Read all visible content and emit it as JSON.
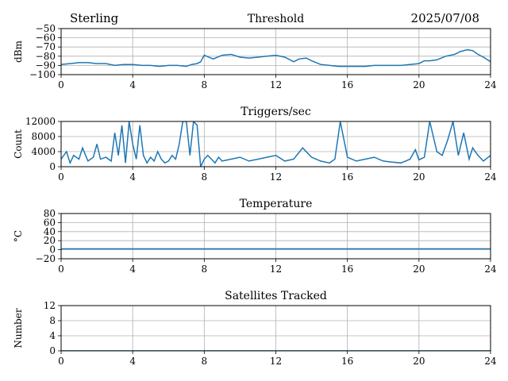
{
  "header": {
    "station": "Sterling",
    "date": "2025/07/08"
  },
  "colors": {
    "series": "#1f77b4",
    "grid": "#b0b0b0",
    "axis": "#000000"
  },
  "chart_data": [
    {
      "type": "line",
      "title": "Threshold",
      "ylabel": "dBm",
      "xlabel": "",
      "xlim": [
        0,
        24
      ],
      "ylim": [
        -100,
        -50
      ],
      "xticks": [
        0,
        4,
        8,
        12,
        16,
        20,
        24
      ],
      "yticks": [
        -100,
        -90,
        -80,
        -70,
        -60,
        -50
      ],
      "ytick_labels": [
        "−100",
        "−90",
        "−80",
        "−70",
        "−60",
        "−50"
      ],
      "grid": true,
      "series": [
        {
          "x": [
            0,
            0.5,
            1,
            1.5,
            2,
            2.5,
            3,
            3.5,
            4,
            4.5,
            5,
            5.5,
            6,
            6.5,
            7,
            7.3,
            7.6,
            7.8,
            8,
            8.5,
            9,
            9.5,
            10,
            10.5,
            11,
            11.5,
            12,
            12.5,
            12.8,
            13,
            13.3,
            13.7,
            14,
            14.5,
            15,
            15.5,
            16,
            16.5,
            17,
            17.5,
            18,
            18.5,
            19,
            19.5,
            20,
            20.3,
            20.6,
            21,
            21.5,
            22,
            22.3,
            22.7,
            23,
            23.3,
            23.6,
            24
          ],
          "y": [
            -89,
            -88,
            -87,
            -87,
            -88,
            -88,
            -90,
            -89,
            -89,
            -90,
            -90,
            -91,
            -90,
            -90,
            -91,
            -89,
            -88,
            -86,
            -79,
            -83,
            -79,
            -78,
            -81,
            -82,
            -81,
            -80,
            -79,
            -81,
            -84,
            -86,
            -83,
            -82,
            -85,
            -89,
            -90,
            -91,
            -91,
            -91,
            -91,
            -90,
            -90,
            -90,
            -90,
            -89,
            -88,
            -85,
            -85,
            -84,
            -80,
            -78,
            -75,
            -73,
            -74,
            -78,
            -81,
            -86
          ]
        }
      ]
    },
    {
      "type": "line",
      "title": "Triggers/sec",
      "ylabel": "Count",
      "xlabel": "",
      "xlim": [
        0,
        24
      ],
      "ylim": [
        0,
        12000
      ],
      "xticks": [
        0,
        4,
        8,
        12,
        16,
        20,
        24
      ],
      "yticks": [
        0,
        4000,
        8000,
        12000
      ],
      "ytick_labels": [
        "0",
        "4000",
        "8000",
        "12000"
      ],
      "grid": true,
      "series": [
        {
          "x": [
            0,
            0.3,
            0.5,
            0.7,
            1,
            1.2,
            1.5,
            1.8,
            2,
            2.2,
            2.5,
            2.8,
            3,
            3.2,
            3.4,
            3.6,
            3.8,
            4,
            4.2,
            4.4,
            4.6,
            4.8,
            5,
            5.2,
            5.4,
            5.6,
            5.8,
            6,
            6.2,
            6.4,
            6.6,
            6.8,
            7,
            7.2,
            7.4,
            7.6,
            7.8,
            8,
            8.2,
            8.4,
            8.6,
            8.8,
            9,
            9.5,
            10,
            10.5,
            11,
            11.5,
            12,
            12.5,
            13,
            13.5,
            14,
            14.5,
            15,
            15.3,
            15.6,
            16,
            16.5,
            17,
            17.5,
            18,
            18.5,
            19,
            19.5,
            19.8,
            20,
            20.3,
            20.6,
            21,
            21.3,
            21.6,
            21.9,
            22.2,
            22.5,
            22.8,
            23,
            23.3,
            23.6,
            24
          ],
          "y": [
            2000,
            4000,
            1000,
            3000,
            2000,
            5000,
            1500,
            2500,
            6000,
            2000,
            2500,
            1500,
            9000,
            3000,
            11000,
            1000,
            12000,
            6000,
            2000,
            11000,
            3000,
            1000,
            2500,
            1500,
            4000,
            2000,
            1000,
            1500,
            3000,
            2000,
            6000,
            12000,
            12000,
            3000,
            12000,
            11000,
            0,
            2000,
            3000,
            2000,
            1000,
            2500,
            1500,
            2000,
            2500,
            1500,
            2000,
            2500,
            3000,
            1500,
            2000,
            5000,
            2500,
            1500,
            1000,
            2000,
            12000,
            2500,
            1500,
            2000,
            2500,
            1500,
            1200,
            1000,
            2000,
            4500,
            1800,
            2500,
            12000,
            4000,
            3000,
            7000,
            12000,
            3000,
            9000,
            2000,
            5000,
            3000,
            1500,
            3000
          ]
        }
      ]
    },
    {
      "type": "line",
      "title": "Temperature",
      "ylabel": "°C",
      "xlabel": "",
      "xlim": [
        0,
        24
      ],
      "ylim": [
        -20,
        80
      ],
      "xticks": [
        0,
        4,
        8,
        12,
        16,
        20,
        24
      ],
      "yticks": [
        -20,
        0,
        20,
        40,
        60,
        80
      ],
      "ytick_labels": [
        "−20",
        "0",
        "20",
        "40",
        "60",
        "80"
      ],
      "grid": true,
      "series": [
        {
          "x": [
            0,
            24
          ],
          "y": [
            2,
            2
          ]
        }
      ]
    },
    {
      "type": "line",
      "title": "Satellites Tracked",
      "ylabel": "Number",
      "xlabel": "",
      "xlim": [
        0,
        24
      ],
      "ylim": [
        0,
        12
      ],
      "xticks": [
        0,
        4,
        8,
        12,
        16,
        20,
        24
      ],
      "yticks": [
        0,
        4,
        8,
        12
      ],
      "ytick_labels": [
        "0",
        "4",
        "8",
        "12"
      ],
      "grid": true,
      "series": [
        {
          "x": [
            0,
            24
          ],
          "y": [
            0,
            0
          ]
        }
      ]
    }
  ]
}
